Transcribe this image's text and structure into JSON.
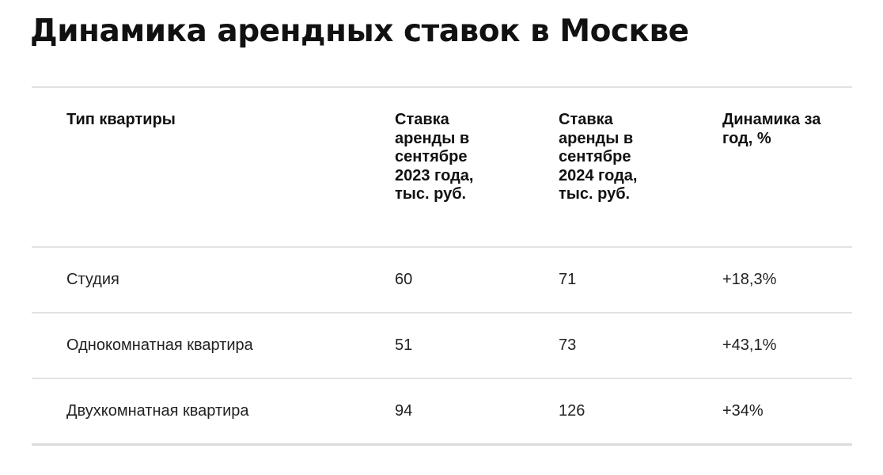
{
  "title": "Динамика арендных ставок в Москве",
  "table": {
    "headers": [
      "Тип квартиры",
      "Ставка аренды в сентябре 2023 года, тыс. руб.",
      "Ставка аренды в сентябре 2024 года, тыс. руб.",
      "Динамика за год, %"
    ],
    "rows": [
      [
        "Студия",
        "60",
        "71",
        "+18,3%"
      ],
      [
        "Однокомнатная квартира",
        "51",
        "73",
        "+43,1%"
      ],
      [
        "Двухкомнатная квартира",
        "94",
        "126",
        "+34%"
      ]
    ]
  }
}
